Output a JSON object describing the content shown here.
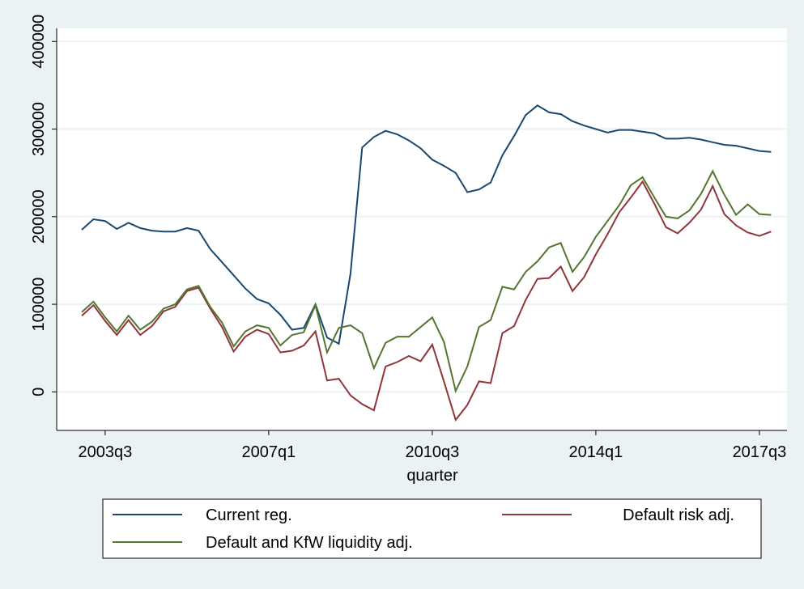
{
  "chart_data": {
    "type": "line",
    "x": [
      "2003q1",
      "2003q2",
      "2003q3",
      "2003q4",
      "2004q1",
      "2004q2",
      "2004q3",
      "2004q4",
      "2005q1",
      "2005q2",
      "2005q3",
      "2005q4",
      "2006q1",
      "2006q2",
      "2006q3",
      "2006q4",
      "2007q1",
      "2007q2",
      "2007q3",
      "2007q4",
      "2008q1",
      "2008q2",
      "2008q3",
      "2008q4",
      "2009q1",
      "2009q2",
      "2009q3",
      "2009q4",
      "2010q1",
      "2010q2",
      "2010q3",
      "2010q4",
      "2011q1",
      "2011q2",
      "2011q3",
      "2011q4",
      "2012q1",
      "2012q2",
      "2012q3",
      "2012q4",
      "2013q1",
      "2013q2",
      "2013q3",
      "2013q4",
      "2014q1",
      "2014q2",
      "2014q3",
      "2014q4",
      "2015q1",
      "2015q2",
      "2015q3",
      "2015q4",
      "2016q1",
      "2016q2",
      "2016q3",
      "2016q4",
      "2017q1",
      "2017q2",
      "2017q3",
      "2017q4"
    ],
    "xticks": [
      "2003q3",
      "2007q1",
      "2010q3",
      "2014q1",
      "2017q3"
    ],
    "xlabel": "quarter",
    "ylim": [
      -44000,
      415000
    ],
    "yticks": [
      0,
      100000,
      200000,
      300000,
      400000
    ],
    "grid": true,
    "series": [
      {
        "name": "Current reg.",
        "color": "#1a476f",
        "values": [
          185000,
          197000,
          195000,
          186000,
          193000,
          187000,
          184000,
          183000,
          183000,
          187000,
          184000,
          163000,
          148000,
          133000,
          118000,
          106000,
          101000,
          88000,
          71000,
          73000,
          100000,
          62000,
          55000,
          135000,
          279000,
          291000,
          298000,
          294000,
          287000,
          278000,
          265000,
          258000,
          250000,
          228000,
          231000,
          239000,
          270000,
          292000,
          316000,
          327000,
          319000,
          317000,
          309000,
          304000,
          300000,
          296000,
          299000,
          299000,
          297000,
          295000,
          289000,
          289000,
          290000,
          288000,
          285000,
          282000,
          281000,
          278000,
          275000,
          274000
        ]
      },
      {
        "name": "Default risk adj.",
        "color": "#90353b",
        "values": [
          87000,
          99000,
          81000,
          65000,
          82000,
          65000,
          75000,
          92000,
          97000,
          115000,
          119000,
          95000,
          74000,
          46000,
          63000,
          71000,
          66000,
          45000,
          47000,
          53000,
          69000,
          13000,
          15000,
          -4000,
          -14000,
          -21000,
          29000,
          34000,
          41000,
          35000,
          54000,
          12000,
          -32000,
          -15000,
          12000,
          10000,
          67000,
          75000,
          105000,
          129000,
          130000,
          143000,
          115000,
          131000,
          157000,
          180000,
          205000,
          222000,
          240000,
          215000,
          188000,
          181000,
          193000,
          208000,
          235000,
          203000,
          190000,
          182000,
          178000,
          183000
        ]
      },
      {
        "name": "Default and KfW liquidity adj.",
        "color": "#55752f",
        "values": [
          91000,
          103000,
          85000,
          69000,
          87000,
          71000,
          80000,
          95000,
          100000,
          117000,
          121000,
          97000,
          79000,
          52000,
          69000,
          76000,
          73000,
          53000,
          65000,
          68000,
          99000,
          45000,
          73000,
          76000,
          67000,
          27000,
          56000,
          63000,
          63000,
          74000,
          85000,
          57000,
          1000,
          29000,
          74000,
          82000,
          120000,
          117000,
          137000,
          149000,
          165000,
          170000,
          137000,
          154000,
          177000,
          195000,
          213000,
          236000,
          245000,
          222000,
          200000,
          198000,
          207000,
          226000,
          252000,
          225000,
          202000,
          214000,
          203000,
          202000
        ]
      }
    ]
  }
}
